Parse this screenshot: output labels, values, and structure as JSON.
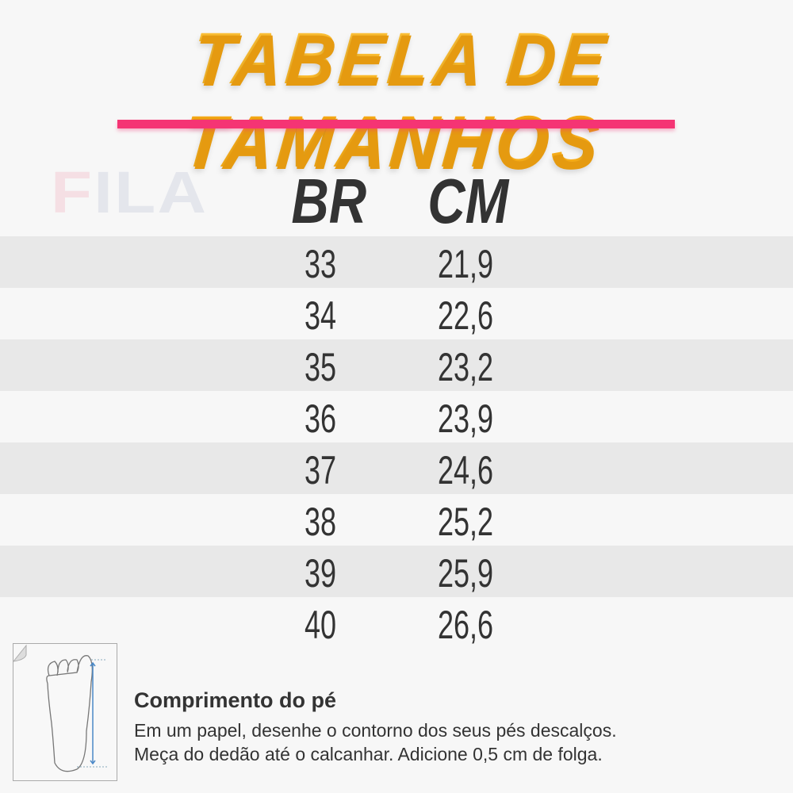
{
  "title": "TABELA DE TAMANHOS",
  "brand_logo": "FILA",
  "accent_color": "#f53474",
  "title_color": "#fbb21c",
  "table": {
    "headers": [
      "BR",
      "CM"
    ],
    "rows": [
      [
        "33",
        "21,9"
      ],
      [
        "34",
        "22,6"
      ],
      [
        "35",
        "23,2"
      ],
      [
        "36",
        "23,9"
      ],
      [
        "37",
        "24,6"
      ],
      [
        "38",
        "25,2"
      ],
      [
        "39",
        "25,9"
      ],
      [
        "40",
        "26,6"
      ]
    ]
  },
  "footer": {
    "icon": "foot-measure-icon",
    "heading": "Comprimento do pé",
    "line1": "Em um papel, desenhe o contorno dos seus pés descalços.",
    "line2": "Meça do dedão até o calcanhar. Adicione 0,5 cm de folga."
  }
}
